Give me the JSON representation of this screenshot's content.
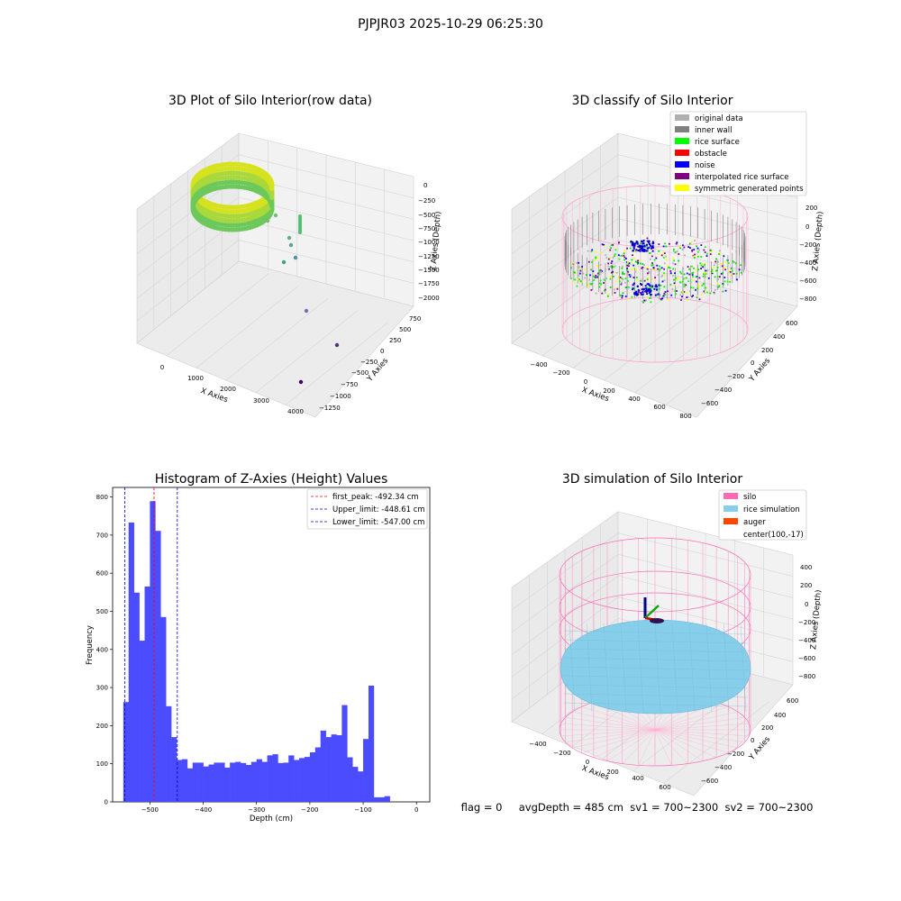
{
  "figure_title": "PJPJR03 2025-10-29 06:25:30",
  "status_line": "flag = 0     avgDepth = 485 cm  sv1 = 700~2300  sv2 = 700~2300",
  "panels": {
    "raw": {
      "title": "3D Plot of Silo Interior(row data)",
      "xlabel": "X Axies",
      "ylabel": "Y Axies",
      "zlabel": "Z Axies (Depth)",
      "xticks": [
        "0",
        "1000",
        "2000",
        "3000",
        "4000"
      ],
      "yticks": [
        "750",
        "500",
        "250",
        "0",
        "−250",
        "−500",
        "−750",
        "−1000",
        "−1250"
      ],
      "zticks": [
        "0",
        "−250",
        "−500",
        "−750",
        "−1000",
        "−1250",
        "−1500",
        "−1750",
        "−2000"
      ]
    },
    "classify": {
      "title": "3D classify of Silo Interior",
      "xlabel": "X Axies",
      "ylabel": "Y Axies",
      "zlabel": "Z Axies (Depth)",
      "xticks": [
        "−400",
        "−200",
        "0",
        "200",
        "400",
        "600",
        "800"
      ],
      "yticks": [
        "600",
        "400",
        "200",
        "0",
        "−200",
        "−400",
        "−600"
      ],
      "zticks": [
        "200",
        "0",
        "−200",
        "−400",
        "−600",
        "−800"
      ],
      "legend": [
        {
          "label": "original data",
          "color": "#b0b0b0"
        },
        {
          "label": "inner wall",
          "color": "#808080"
        },
        {
          "label": "rice surface",
          "color": "#00ff00"
        },
        {
          "label": "obstacle",
          "color": "#ff0000"
        },
        {
          "label": "noise",
          "color": "#0000ff"
        },
        {
          "label": "interpolated rice surface",
          "color": "#800080"
        },
        {
          "label": "symmetric generated points",
          "color": "#ffff00"
        }
      ]
    },
    "simulation": {
      "title": "3D simulation of Silo Interior",
      "xlabel": "X Axies",
      "ylabel": "Y Axies",
      "zlabel": "Z Axies (Depth)",
      "xticks": [
        "−400",
        "−200",
        "0",
        "200",
        "400",
        "600"
      ],
      "yticks": [
        "600",
        "400",
        "200",
        "0",
        "−200",
        "−400",
        "−600"
      ],
      "zticks": [
        "400",
        "200",
        "0",
        "−200",
        "−400",
        "−600",
        "−800"
      ],
      "legend": [
        {
          "label": "silo",
          "color": "#ff69b4"
        },
        {
          "label": "rice simulation",
          "color": "#87ceeb"
        },
        {
          "label": "auger",
          "color": "#ff4500"
        },
        {
          "label": "center(100,-17)",
          "color": ""
        }
      ]
    }
  },
  "chart_data": {
    "type": "bar",
    "title": "Histogram of Z-Axies (Height) Values",
    "xlabel": "Depth (cm)",
    "ylabel": "Frequency",
    "bar_color": "#4c4cff",
    "bin_start": -550,
    "bin_width": 10,
    "values": [
      262,
      733,
      549,
      423,
      565,
      789,
      711,
      485,
      251,
      170,
      110,
      112,
      88,
      103,
      103,
      93,
      98,
      103,
      103,
      90,
      103,
      105,
      102,
      97,
      105,
      112,
      105,
      122,
      125,
      102,
      103,
      122,
      110,
      115,
      118,
      130,
      143,
      187,
      170,
      177,
      175,
      254,
      117,
      92,
      80,
      165,
      305,
      12,
      12,
      15
    ],
    "xlim": [
      -570,
      25
    ],
    "ylim": [
      0,
      825
    ],
    "xticks": [
      -500,
      -400,
      -300,
      -200,
      -100,
      0
    ],
    "yticks": [
      0,
      100,
      200,
      300,
      400,
      500,
      600,
      700,
      800
    ],
    "vlines": [
      {
        "label": "first_peak: -492.34 cm",
        "x": -492.34,
        "color": "#ff0000"
      },
      {
        "label": "Upper_limit: -448.61 cm",
        "x": -448.61,
        "color": "#0000cc"
      },
      {
        "label": "Lower_limit: -547.00 cm",
        "x": -547.0,
        "color": "#0000cc"
      }
    ],
    "legend_position": "top-right"
  }
}
